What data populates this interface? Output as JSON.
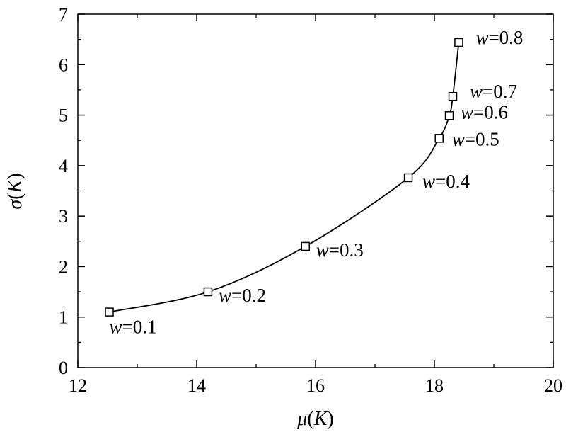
{
  "chart_data": {
    "type": "line",
    "title": "",
    "xlabel": {
      "var": "μ",
      "arg": "K"
    },
    "ylabel": {
      "var": "σ",
      "arg": "K"
    },
    "xlim": [
      12,
      20
    ],
    "ylim": [
      0,
      7
    ],
    "x_ticks": [
      "12",
      "14",
      "16",
      "18",
      "20"
    ],
    "y_ticks": [
      "0",
      "1",
      "2",
      "3",
      "4",
      "5",
      "6",
      "7"
    ],
    "grid": false,
    "legend": "none",
    "marker": "open-square",
    "line_color": "#000000",
    "points": [
      {
        "x": 12.53,
        "y": 1.1,
        "var": "w",
        "value": "=0.1"
      },
      {
        "x": 14.19,
        "y": 1.5,
        "var": "w",
        "value": "=0.2"
      },
      {
        "x": 15.83,
        "y": 2.4,
        "var": "w",
        "value": "=0.3"
      },
      {
        "x": 17.56,
        "y": 3.76,
        "var": "w",
        "value": "=0.4"
      },
      {
        "x": 18.08,
        "y": 4.54,
        "var": "w",
        "value": "=0.5"
      },
      {
        "x": 18.25,
        "y": 4.99,
        "var": "w",
        "value": "=0.6"
      },
      {
        "x": 18.31,
        "y": 5.37,
        "var": "w",
        "value": "=0.7"
      },
      {
        "x": 18.41,
        "y": 6.44,
        "var": "w",
        "value": "=0.8"
      }
    ]
  }
}
